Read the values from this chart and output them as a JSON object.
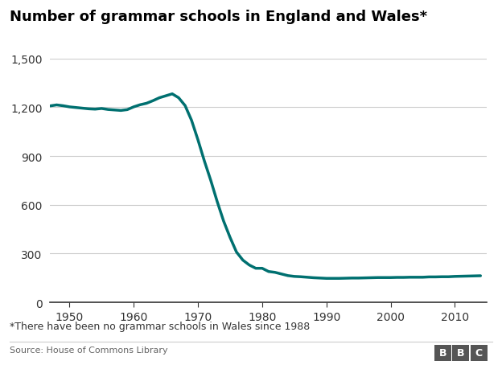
{
  "title": "Number of grammar schools in England and Wales*",
  "footnote": "*There have been no grammar schools in Wales since 1988",
  "source": "Source: House of Commons Library",
  "line_color": "#007070",
  "background_color": "#ffffff",
  "years": [
    1947,
    1948,
    1949,
    1950,
    1951,
    1952,
    1953,
    1954,
    1955,
    1956,
    1957,
    1958,
    1959,
    1960,
    1961,
    1962,
    1963,
    1964,
    1965,
    1966,
    1967,
    1968,
    1969,
    1970,
    1971,
    1972,
    1973,
    1974,
    1975,
    1976,
    1977,
    1978,
    1979,
    1980,
    1981,
    1982,
    1983,
    1984,
    1985,
    1986,
    1987,
    1988,
    1989,
    1990,
    1991,
    1992,
    1993,
    1994,
    1995,
    1996,
    1997,
    1998,
    1999,
    2000,
    2001,
    2002,
    2003,
    2004,
    2005,
    2006,
    2007,
    2008,
    2009,
    2010,
    2011,
    2012,
    2013,
    2014
  ],
  "values": [
    1208,
    1214,
    1209,
    1202,
    1198,
    1194,
    1190,
    1188,
    1192,
    1186,
    1183,
    1180,
    1185,
    1202,
    1215,
    1224,
    1240,
    1258,
    1270,
    1282,
    1258,
    1210,
    1120,
    1000,
    870,
    750,
    620,
    500,
    400,
    310,
    260,
    230,
    210,
    210,
    190,
    185,
    175,
    165,
    160,
    158,
    155,
    152,
    150,
    148,
    148,
    148,
    149,
    150,
    150,
    151,
    152,
    153,
    153,
    153,
    154,
    154,
    155,
    155,
    155,
    157,
    157,
    158,
    158,
    160,
    161,
    162,
    163,
    164
  ],
  "ylim": [
    0,
    1500
  ],
  "yticks": [
    0,
    300,
    600,
    900,
    1200,
    1500
  ],
  "ytick_labels": [
    "0",
    "300",
    "600",
    "900",
    "1,200",
    "1,500"
  ],
  "xticks": [
    1950,
    1960,
    1970,
    1980,
    1990,
    2000,
    2010
  ],
  "xlim": [
    1947,
    2015
  ],
  "grid_color": "#cccccc",
  "spine_color": "#333333",
  "tick_label_color": "#333333",
  "source_color": "#666666",
  "bbc_letters": [
    "B",
    "B",
    "C"
  ],
  "bbc_box_color": "#555555"
}
